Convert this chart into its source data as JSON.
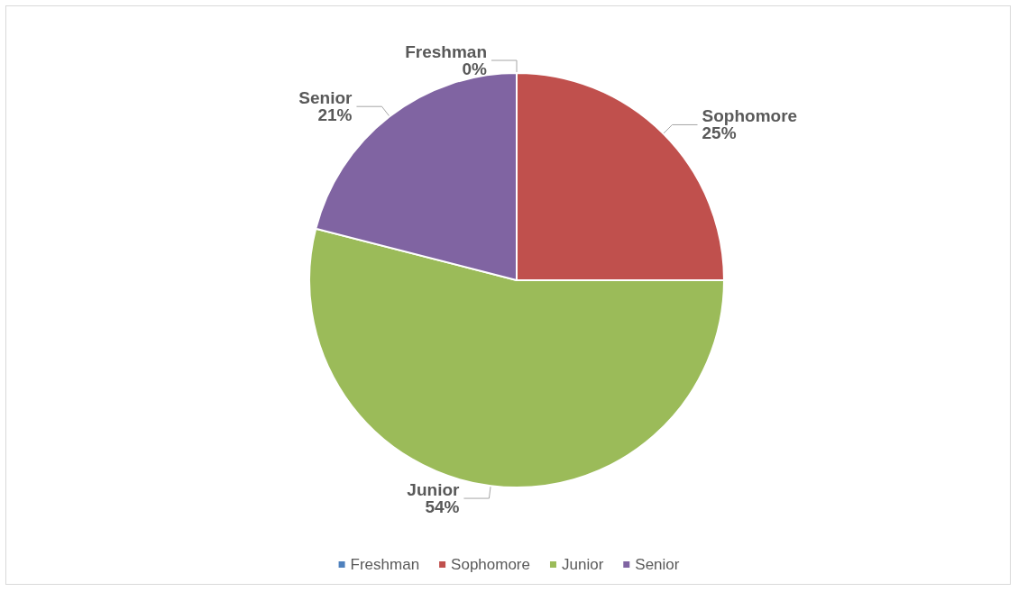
{
  "chart_data": {
    "type": "pie",
    "categories": [
      "Freshman",
      "Sophomore",
      "Junior",
      "Senior"
    ],
    "values": [
      0,
      25,
      54,
      21
    ],
    "value_labels": [
      "0%",
      "25%",
      "54%",
      "21%"
    ],
    "colors": [
      "#4f81bd",
      "#c0504d",
      "#9bbb59",
      "#8064a2"
    ],
    "legend": "bottom"
  }
}
